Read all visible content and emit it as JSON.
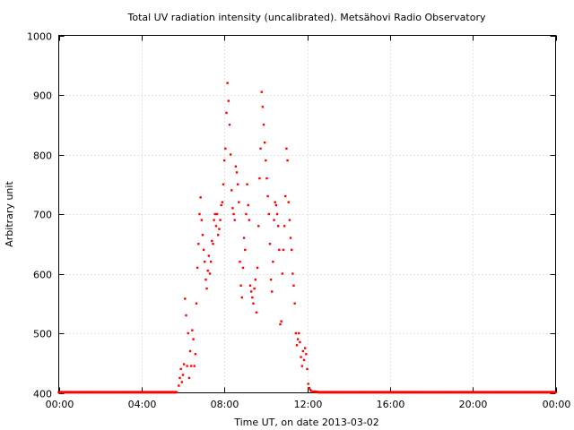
{
  "chart_data": {
    "type": "scatter",
    "title": "Total UV radiation intensity (uncalibrated). Metsähovi Radio Observatory",
    "xlabel": "Time UT, on date 2013-03-02",
    "ylabel": "Arbitrary unit",
    "xlim": [
      0,
      24
    ],
    "ylim": [
      400,
      1000
    ],
    "x_ticks": [
      {
        "value": 0,
        "label": "00:00"
      },
      {
        "value": 4,
        "label": "04:00"
      },
      {
        "value": 8,
        "label": "08:00"
      },
      {
        "value": 12,
        "label": "12:00"
      },
      {
        "value": 16,
        "label": "16:00"
      },
      {
        "value": 20,
        "label": "20:00"
      },
      {
        "value": 24,
        "label": "00:00"
      }
    ],
    "y_ticks": [
      {
        "value": 400,
        "label": "400"
      },
      {
        "value": 500,
        "label": "500"
      },
      {
        "value": 600,
        "label": "600"
      },
      {
        "value": 700,
        "label": "700"
      },
      {
        "value": 800,
        "label": "800"
      },
      {
        "value": 900,
        "label": "900"
      },
      {
        "value": 1000,
        "label": "1000"
      }
    ],
    "grid": true,
    "marker_color": "#ff0000",
    "series": [
      {
        "values": [
          [
            0.0,
            401
          ],
          [
            0.3,
            401
          ],
          [
            0.6,
            401
          ],
          [
            0.9,
            401
          ],
          [
            1.2,
            401
          ],
          [
            1.5,
            401
          ],
          [
            1.8,
            401
          ],
          [
            2.1,
            401
          ],
          [
            2.4,
            401
          ],
          [
            2.7,
            401
          ],
          [
            3.0,
            401
          ],
          [
            3.3,
            401
          ],
          [
            3.6,
            401
          ],
          [
            3.9,
            401
          ],
          [
            4.2,
            401
          ],
          [
            4.5,
            401
          ],
          [
            4.8,
            401
          ],
          [
            5.1,
            401
          ],
          [
            5.4,
            401
          ],
          [
            5.7,
            401
          ],
          [
            5.8,
            412
          ],
          [
            5.85,
            425
          ],
          [
            5.9,
            440
          ],
          [
            5.95,
            418
          ],
          [
            6.0,
            430
          ],
          [
            6.05,
            448
          ],
          [
            6.1,
            558
          ],
          [
            6.15,
            530
          ],
          [
            6.2,
            445
          ],
          [
            6.25,
            500
          ],
          [
            6.3,
            425
          ],
          [
            6.35,
            470
          ],
          [
            6.4,
            445
          ],
          [
            6.45,
            505
          ],
          [
            6.5,
            490
          ],
          [
            6.55,
            445
          ],
          [
            6.6,
            465
          ],
          [
            6.65,
            550
          ],
          [
            6.7,
            610
          ],
          [
            6.75,
            650
          ],
          [
            6.8,
            700
          ],
          [
            6.85,
            728
          ],
          [
            6.9,
            690
          ],
          [
            6.95,
            665
          ],
          [
            7.0,
            640
          ],
          [
            7.05,
            620
          ],
          [
            7.1,
            590
          ],
          [
            7.15,
            575
          ],
          [
            7.2,
            605
          ],
          [
            7.25,
            630
          ],
          [
            7.3,
            600
          ],
          [
            7.35,
            620
          ],
          [
            7.4,
            655
          ],
          [
            7.45,
            650
          ],
          [
            7.5,
            690
          ],
          [
            7.55,
            700
          ],
          [
            7.6,
            680
          ],
          [
            7.65,
            700
          ],
          [
            7.7,
            665
          ],
          [
            7.75,
            675
          ],
          [
            7.8,
            690
          ],
          [
            7.85,
            715
          ],
          [
            7.9,
            720
          ],
          [
            7.95,
            750
          ],
          [
            8.0,
            790
          ],
          [
            8.05,
            810
          ],
          [
            8.1,
            870
          ],
          [
            8.15,
            920
          ],
          [
            8.2,
            890
          ],
          [
            8.25,
            850
          ],
          [
            8.3,
            800
          ],
          [
            8.35,
            740
          ],
          [
            8.4,
            710
          ],
          [
            8.45,
            700
          ],
          [
            8.5,
            690
          ],
          [
            8.55,
            780
          ],
          [
            8.6,
            770
          ],
          [
            8.65,
            750
          ],
          [
            8.7,
            720
          ],
          [
            8.75,
            620
          ],
          [
            8.8,
            580
          ],
          [
            8.85,
            560
          ],
          [
            8.9,
            610
          ],
          [
            8.95,
            660
          ],
          [
            9.0,
            640
          ],
          [
            9.05,
            700
          ],
          [
            9.1,
            750
          ],
          [
            9.15,
            715
          ],
          [
            9.2,
            690
          ],
          [
            9.25,
            580
          ],
          [
            9.3,
            570
          ],
          [
            9.35,
            560
          ],
          [
            9.4,
            550
          ],
          [
            9.45,
            575
          ],
          [
            9.5,
            590
          ],
          [
            9.55,
            535
          ],
          [
            9.6,
            610
          ],
          [
            9.65,
            680
          ],
          [
            9.7,
            760
          ],
          [
            9.75,
            810
          ],
          [
            9.8,
            905
          ],
          [
            9.85,
            880
          ],
          [
            9.9,
            850
          ],
          [
            9.95,
            820
          ],
          [
            10.0,
            790
          ],
          [
            10.05,
            760
          ],
          [
            10.1,
            730
          ],
          [
            10.15,
            700
          ],
          [
            10.2,
            650
          ],
          [
            10.25,
            590
          ],
          [
            10.3,
            570
          ],
          [
            10.35,
            620
          ],
          [
            10.4,
            690
          ],
          [
            10.45,
            720
          ],
          [
            10.5,
            715
          ],
          [
            10.55,
            700
          ],
          [
            10.6,
            680
          ],
          [
            10.65,
            640
          ],
          [
            10.7,
            515
          ],
          [
            10.75,
            520
          ],
          [
            10.8,
            600
          ],
          [
            10.85,
            640
          ],
          [
            10.9,
            680
          ],
          [
            10.95,
            730
          ],
          [
            11.0,
            810
          ],
          [
            11.05,
            790
          ],
          [
            11.1,
            720
          ],
          [
            11.15,
            690
          ],
          [
            11.2,
            660
          ],
          [
            11.25,
            640
          ],
          [
            11.3,
            600
          ],
          [
            11.35,
            580
          ],
          [
            11.4,
            550
          ],
          [
            11.45,
            500
          ],
          [
            11.5,
            480
          ],
          [
            11.55,
            490
          ],
          [
            11.6,
            500
          ],
          [
            11.65,
            485
          ],
          [
            11.7,
            460
          ],
          [
            11.75,
            445
          ],
          [
            11.8,
            470
          ],
          [
            11.85,
            455
          ],
          [
            11.9,
            475
          ],
          [
            11.95,
            465
          ],
          [
            12.0,
            440
          ],
          [
            12.05,
            415
          ],
          [
            12.1,
            408
          ],
          [
            12.15,
            405
          ],
          [
            12.2,
            403
          ],
          [
            12.3,
            402
          ],
          [
            12.6,
            401
          ],
          [
            12.9,
            401
          ],
          [
            13.2,
            401
          ],
          [
            13.5,
            401
          ],
          [
            13.8,
            401
          ],
          [
            14.1,
            401
          ],
          [
            14.4,
            401
          ],
          [
            14.7,
            401
          ],
          [
            15.0,
            401
          ],
          [
            15.3,
            401
          ],
          [
            15.6,
            401
          ],
          [
            15.9,
            401
          ],
          [
            16.2,
            401
          ],
          [
            16.5,
            401
          ],
          [
            16.8,
            401
          ],
          [
            17.1,
            401
          ],
          [
            17.4,
            401
          ],
          [
            17.7,
            401
          ],
          [
            18.0,
            401
          ],
          [
            18.3,
            401
          ],
          [
            18.6,
            401
          ],
          [
            18.9,
            401
          ],
          [
            19.2,
            401
          ],
          [
            19.5,
            401
          ],
          [
            19.8,
            401
          ],
          [
            20.1,
            401
          ],
          [
            20.4,
            401
          ],
          [
            20.7,
            401
          ],
          [
            21.0,
            401
          ],
          [
            21.3,
            401
          ],
          [
            21.6,
            401
          ],
          [
            21.9,
            401
          ],
          [
            22.2,
            401
          ],
          [
            22.5,
            401
          ],
          [
            22.8,
            401
          ],
          [
            23.1,
            401
          ],
          [
            23.4,
            401
          ],
          [
            23.7,
            401
          ],
          [
            24.0,
            401
          ]
        ]
      }
    ]
  }
}
